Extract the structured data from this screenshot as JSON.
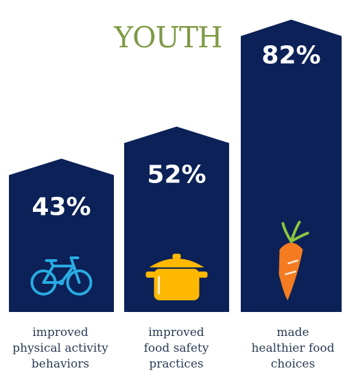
{
  "chart_data": {
    "type": "bar",
    "title": "YOUTH",
    "categories": [
      [
        "improved",
        "physical activity",
        "behaviors"
      ],
      [
        "improved",
        "food safety",
        "practices"
      ],
      [
        "made",
        "healthier food",
        "choices"
      ]
    ],
    "values": [
      43,
      52,
      82
    ],
    "value_labels": [
      "43%",
      "52%",
      "82%"
    ],
    "icons": [
      "bicycle-icon",
      "cooking-pot-icon",
      "carrot-icon"
    ],
    "ylim": [
      0,
      100
    ]
  },
  "colors": {
    "bar": "#0b2157",
    "title": "#7e9a45",
    "bicycle": "#29abe2",
    "pot": "#ffb800",
    "carrot": "#f47b20",
    "carrot_leaf": "#8cc63f",
    "label_text": "#2a3a55"
  }
}
